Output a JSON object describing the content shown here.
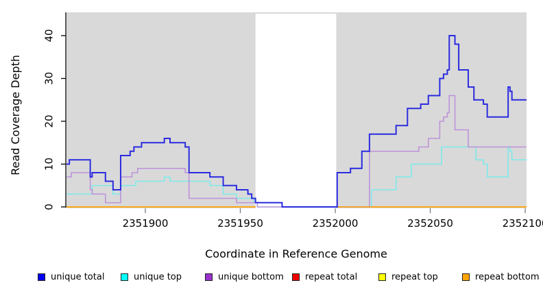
{
  "chart_data": {
    "type": "line",
    "subtype": "step-coverage-plot",
    "title": "",
    "xlabel": "Coordinate in Reference Genome",
    "ylabel": "Read Coverage Depth",
    "xlim": [
      2351858.5,
      2352100.7
    ],
    "ylim": [
      0,
      45.5
    ],
    "x_ticks": [
      2351900,
      2351950,
      2352000,
      2352050,
      2352100
    ],
    "y_ticks": [
      0,
      10,
      20,
      30,
      40
    ],
    "grid": false,
    "panel_color": "#d9d9d9",
    "gap_region": [
      2351958,
      2352000.5
    ],
    "legend_position": "bottom",
    "series": [
      {
        "name": "repeat total",
        "color": "#dd2222",
        "legend_color": "#ee0000",
        "skip_gap": true,
        "points": [
          [
            2351858.5,
            0
          ]
        ]
      },
      {
        "name": "repeat top",
        "color": "#ffff33",
        "legend_color": "#ffff00",
        "skip_gap": true,
        "points": [
          [
            2351858.5,
            0
          ]
        ]
      },
      {
        "name": "unique top",
        "color": "#7deaea",
        "legend_color": "#00ffff",
        "skip_gap": false,
        "points": [
          [
            2351858.5,
            3
          ],
          [
            2351872,
            5
          ],
          [
            2351883,
            3
          ],
          [
            2351887,
            5
          ],
          [
            2351895,
            6
          ],
          [
            2351910,
            7
          ],
          [
            2351913,
            6
          ],
          [
            2351934,
            5
          ],
          [
            2351941,
            3
          ],
          [
            2351948,
            2
          ],
          [
            2351957,
            1
          ],
          [
            2351959,
            0
          ],
          [
            2352019,
            4
          ],
          [
            2352032,
            7
          ],
          [
            2352040,
            10
          ],
          [
            2352056,
            14
          ],
          [
            2352074,
            11
          ],
          [
            2352078,
            10
          ],
          [
            2352080,
            7
          ],
          [
            2352091,
            14
          ],
          [
            2352092,
            13
          ],
          [
            2352093,
            11
          ]
        ]
      },
      {
        "name": "unique bottom",
        "color": "#bd92da",
        "legend_color": "#9932cc",
        "skip_gap": false,
        "points": [
          [
            2351858.5,
            7
          ],
          [
            2351861,
            8
          ],
          [
            2351871,
            4
          ],
          [
            2351872,
            3
          ],
          [
            2351879,
            1
          ],
          [
            2351887,
            7
          ],
          [
            2351893,
            8
          ],
          [
            2351896,
            9
          ],
          [
            2351921,
            8
          ],
          [
            2351923,
            2
          ],
          [
            2351948,
            1
          ],
          [
            2351959,
            0
          ],
          [
            2352018,
            13
          ],
          [
            2352044,
            14
          ],
          [
            2352049,
            16
          ],
          [
            2352055,
            20
          ],
          [
            2352057,
            21
          ],
          [
            2352059,
            22
          ],
          [
            2352060,
            26
          ],
          [
            2352063,
            18
          ],
          [
            2352070,
            14
          ]
        ]
      },
      {
        "name": "repeat bottom",
        "color": "#ff9f00",
        "legend_color": "#ffa500",
        "skip_gap": true,
        "points": [
          [
            2351858.5,
            0
          ]
        ]
      },
      {
        "name": "unique total",
        "color": "#2b2be0",
        "legend_color": "#0000ee",
        "skip_gap": false,
        "points": [
          [
            2351858.5,
            10
          ],
          [
            2351860,
            11
          ],
          [
            2351871,
            7
          ],
          [
            2351872,
            8
          ],
          [
            2351879,
            6
          ],
          [
            2351883,
            4
          ],
          [
            2351887,
            12
          ],
          [
            2351892,
            13
          ],
          [
            2351894,
            14
          ],
          [
            2351898,
            15
          ],
          [
            2351910,
            16
          ],
          [
            2351913,
            15
          ],
          [
            2351921,
            14
          ],
          [
            2351923,
            8
          ],
          [
            2351934,
            7
          ],
          [
            2351941,
            5
          ],
          [
            2351948,
            4
          ],
          [
            2351954,
            3
          ],
          [
            2351956,
            2
          ],
          [
            2351958,
            1
          ],
          [
            2351972,
            0
          ],
          [
            2352001,
            8
          ],
          [
            2352008,
            9
          ],
          [
            2352014,
            13
          ],
          [
            2352018,
            17
          ],
          [
            2352032,
            19
          ],
          [
            2352038,
            23
          ],
          [
            2352045,
            24
          ],
          [
            2352049,
            26
          ],
          [
            2352055,
            30
          ],
          [
            2352057,
            31
          ],
          [
            2352059,
            32
          ],
          [
            2352060,
            40
          ],
          [
            2352063,
            38
          ],
          [
            2352065,
            32
          ],
          [
            2352070,
            28
          ],
          [
            2352073,
            25
          ],
          [
            2352078,
            24
          ],
          [
            2352080,
            21
          ],
          [
            2352091,
            28
          ],
          [
            2352092,
            27
          ],
          [
            2352093,
            25
          ]
        ]
      }
    ],
    "legend_items": [
      {
        "label": "unique total",
        "color": "#0000ee"
      },
      {
        "label": "unique top",
        "color": "#00ffff"
      },
      {
        "label": "unique bottom",
        "color": "#9932cc"
      },
      {
        "label": "repeat total",
        "color": "#ee0000"
      },
      {
        "label": "repeat top",
        "color": "#ffff00"
      },
      {
        "label": "repeat bottom",
        "color": "#ffa500"
      }
    ]
  }
}
